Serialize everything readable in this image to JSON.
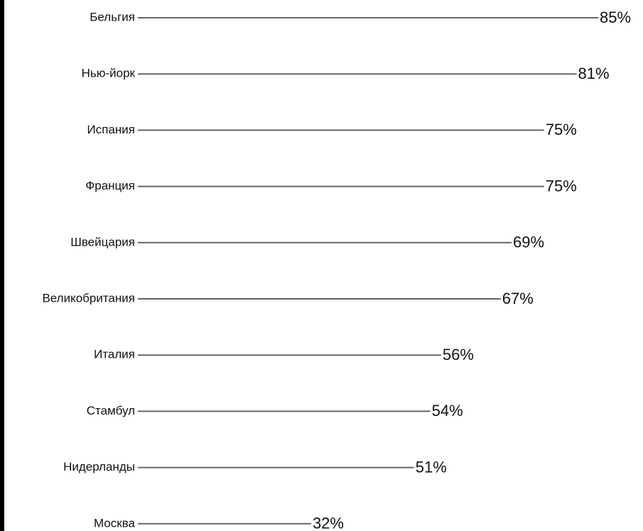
{
  "chart_data": {
    "type": "bar",
    "orientation": "horizontal",
    "categories": [
      "Бельгия",
      "Нью-йорк",
      "Испания",
      "Франция",
      "Швейцария",
      "Великобритания",
      "Италия",
      "Стамбул",
      "Нидерланды",
      "Москва"
    ],
    "values": [
      85,
      81,
      75,
      75,
      69,
      67,
      56,
      54,
      51,
      32
    ],
    "value_labels": [
      "85%",
      "81%",
      "75%",
      "75%",
      "69%",
      "67%",
      "56%",
      "54%",
      "51%",
      "32%"
    ],
    "unit": "%",
    "xlim": [
      0,
      85
    ],
    "grid": false,
    "legend": "none",
    "bar_color": "#666666"
  }
}
